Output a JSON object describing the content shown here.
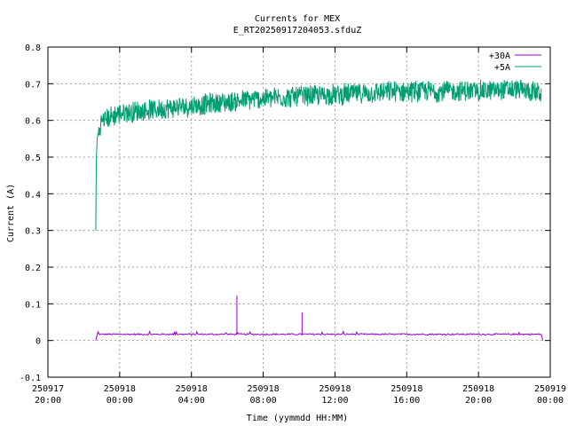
{
  "chart_data": {
    "type": "line",
    "title": "Currents for MEX",
    "subtitle": "E_RT20250917204053.sfduZ",
    "xlabel": "Time (yymmdd HH:MM)",
    "ylabel": "Current (A)",
    "xlim": [
      "2025-09-17 20:00",
      "2025-09-19 00:00"
    ],
    "ylim": [
      -0.1,
      0.8
    ],
    "grid": true,
    "legend_position": "top-right",
    "x_ticks": [
      {
        "date": "250917",
        "time": "20:00",
        "t": "2025-09-17 20:00"
      },
      {
        "date": "250918",
        "time": "00:00",
        "t": "2025-09-18 00:00"
      },
      {
        "date": "250918",
        "time": "04:00",
        "t": "2025-09-18 04:00"
      },
      {
        "date": "250918",
        "time": "08:00",
        "t": "2025-09-18 08:00"
      },
      {
        "date": "250918",
        "time": "12:00",
        "t": "2025-09-18 12:00"
      },
      {
        "date": "250918",
        "time": "16:00",
        "t": "2025-09-18 16:00"
      },
      {
        "date": "250918",
        "time": "20:00",
        "t": "2025-09-18 20:00"
      },
      {
        "date": "250919",
        "time": "00:00",
        "t": "2025-09-19 00:00"
      }
    ],
    "y_ticks": [
      "-0.1",
      "0",
      "0.1",
      "0.2",
      "0.3",
      "0.4",
      "0.5",
      "0.6",
      "0.7",
      "0.8"
    ],
    "series": [
      {
        "name": "+30A",
        "color": "#9400d3",
        "x": [
          "2025-09-17 22:40",
          "2025-09-17 22:45",
          "2025-09-18 00:00",
          "2025-09-18 02:00",
          "2025-09-18 04:00",
          "2025-09-18 06:00",
          "2025-09-18 06:30",
          "2025-09-18 06:32",
          "2025-09-18 06:34",
          "2025-09-18 08:00",
          "2025-09-18 10:00",
          "2025-09-18 10:10",
          "2025-09-18 10:12",
          "2025-09-18 12:00",
          "2025-09-18 16:00",
          "2025-09-18 20:00",
          "2025-09-18 22:00",
          "2025-09-18 23:30",
          "2025-09-18 23:35"
        ],
        "values": [
          0.0,
          0.017,
          0.017,
          0.016,
          0.017,
          0.017,
          0.017,
          0.123,
          0.017,
          0.017,
          0.017,
          0.077,
          0.017,
          0.017,
          0.017,
          0.017,
          0.018,
          0.018,
          0.0
        ]
      },
      {
        "name": "+5A",
        "color": "#009e73",
        "x": [
          "2025-09-17 22:40",
          "2025-09-17 22:42",
          "2025-09-17 22:45",
          "2025-09-17 23:00",
          "2025-09-17 23:30",
          "2025-09-18 00:00",
          "2025-09-18 01:00",
          "2025-09-18 02:00",
          "2025-09-18 04:00",
          "2025-09-18 06:00",
          "2025-09-18 08:00",
          "2025-09-18 10:00",
          "2025-09-18 12:00",
          "2025-09-18 14:00",
          "2025-09-18 16:00",
          "2025-09-18 18:00",
          "2025-09-18 20:00",
          "2025-09-18 22:00",
          "2025-09-18 23:30"
        ],
        "values": [
          0.3,
          0.5,
          0.55,
          0.6,
          0.61,
          0.62,
          0.625,
          0.63,
          0.64,
          0.65,
          0.66,
          0.665,
          0.67,
          0.675,
          0.68,
          0.68,
          0.68,
          0.685,
          0.675
        ]
      }
    ]
  }
}
